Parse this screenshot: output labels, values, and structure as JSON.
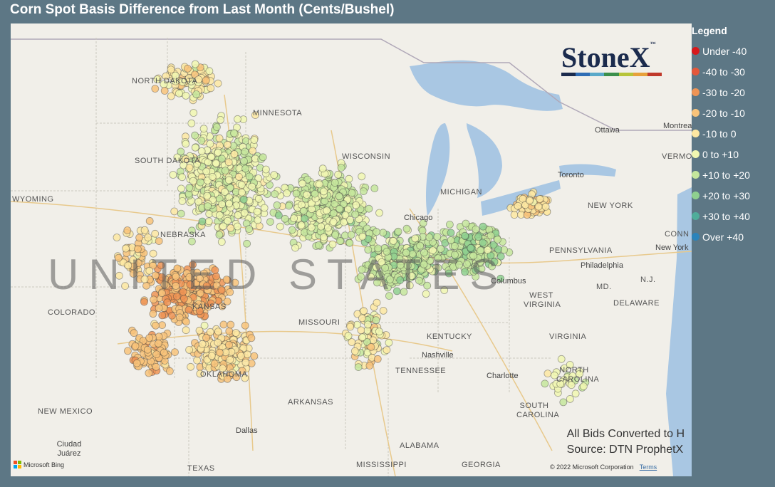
{
  "title": "Corn Spot Basis Difference from Last Month (Cents/Bushel)",
  "legend": {
    "title": "Legend",
    "items": [
      {
        "label": "Under -40",
        "color": "#d7191c"
      },
      {
        "label": "-40 to -30",
        "color": "#e4573a"
      },
      {
        "label": "-30 to -20",
        "color": "#ef9455"
      },
      {
        "label": "-20 to -10",
        "color": "#f8c37a"
      },
      {
        "label": "-10 to 0",
        "color": "#fde7a2"
      },
      {
        "label": "0 to +10",
        "color": "#f1f7b1"
      },
      {
        "label": "+10 to +20",
        "color": "#c5e69c"
      },
      {
        "label": "+20 to +30",
        "color": "#8fd08f"
      },
      {
        "label": "+30 to +40",
        "color": "#4fad9a"
      },
      {
        "label": "Over +40",
        "color": "#2b83ba"
      }
    ]
  },
  "map": {
    "country_label": "UNITED STATES",
    "states": [
      {
        "name": "NORTH DAKOTA"
      },
      {
        "name": "SOUTH DAKOTA"
      },
      {
        "name": "MINNESOTA"
      },
      {
        "name": "WYOMING"
      },
      {
        "name": "NEBRASKA"
      },
      {
        "name": "COLORADO"
      },
      {
        "name": "KANSAS"
      },
      {
        "name": "WISCONSIN"
      },
      {
        "name": "MICHIGAN"
      },
      {
        "name": "MISSOURI"
      },
      {
        "name": "OKLAHOMA"
      },
      {
        "name": "ARKANSAS"
      },
      {
        "name": "NEW MEXICO"
      },
      {
        "name": "TEXAS"
      },
      {
        "name": "KENTUCKY"
      },
      {
        "name": "TENNESSEE"
      },
      {
        "name": "MISSISSIPPI"
      },
      {
        "name": "ALABAMA"
      },
      {
        "name": "GEORGIA"
      },
      {
        "name": "WEST VIRGINIA"
      },
      {
        "name": "VIRGINIA"
      },
      {
        "name": "NORTH CAROLINA"
      },
      {
        "name": "SOUTH CAROLINA"
      },
      {
        "name": "PENNSYLVANIA"
      },
      {
        "name": "NEW YORK"
      },
      {
        "name": "MD."
      },
      {
        "name": "DELAWARE"
      },
      {
        "name": "N.J."
      },
      {
        "name": "VERMONT"
      },
      {
        "name": "CONN"
      }
    ],
    "cities": [
      {
        "name": "Chicago"
      },
      {
        "name": "Columbus"
      },
      {
        "name": "Nashville"
      },
      {
        "name": "Charlotte"
      },
      {
        "name": "Dallas"
      },
      {
        "name": "Ciudad Juárez"
      },
      {
        "name": "Ottawa"
      },
      {
        "name": "Montreal"
      },
      {
        "name": "Toronto"
      },
      {
        "name": "New York"
      },
      {
        "name": "Philadelphia"
      }
    ]
  },
  "brand": {
    "logo_text": "StoneX",
    "trademark": "™",
    "bar_colors": [
      "#1b2b4d",
      "#2f6db5",
      "#5aa9c9",
      "#3b8f4b",
      "#b7c43a",
      "#e7a13b",
      "#c0392b"
    ]
  },
  "note": {
    "line1": "All Bids Converted to H",
    "line2": "Source: DTN ProphetX"
  },
  "attribution": {
    "bing": "Microsoft Bing",
    "copyright": "© 2022 Microsoft Corporation",
    "terms": "Terms"
  }
}
